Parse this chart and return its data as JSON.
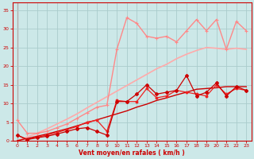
{
  "background_color": "#cce8e8",
  "grid_color": "#aacccc",
  "xlabel": "Vent moyen/en rafales ( km/h )",
  "xlim": [
    -0.5,
    23.5
  ],
  "ylim": [
    0,
    37
  ],
  "xticks": [
    0,
    1,
    2,
    3,
    4,
    5,
    6,
    7,
    8,
    9,
    10,
    11,
    12,
    13,
    14,
    15,
    16,
    17,
    18,
    19,
    20,
    21,
    22,
    23
  ],
  "yticks": [
    0,
    5,
    10,
    15,
    20,
    25,
    30,
    35
  ],
  "line_diagonal": {
    "x": [
      0,
      1,
      2,
      3,
      4,
      5,
      6,
      7,
      8,
      9,
      10,
      11,
      12,
      13,
      14,
      15,
      16,
      17,
      18,
      19,
      20,
      21,
      22,
      23
    ],
    "y": [
      0,
      0.6,
      1.2,
      1.8,
      2.5,
      3.2,
      4.0,
      4.8,
      5.6,
      6.4,
      7.2,
      8.0,
      9.0,
      9.8,
      10.8,
      11.5,
      12.3,
      13.0,
      13.8,
      14.0,
      14.2,
      14.5,
      14.5,
      14.5
    ],
    "color": "#cc0000",
    "lw": 1.0
  },
  "line_pink_high": {
    "x": [
      0,
      1,
      2,
      3,
      4,
      5,
      6,
      7,
      8,
      9,
      10,
      11,
      12,
      13,
      14,
      15,
      16,
      17,
      18,
      19,
      20,
      21,
      22,
      23
    ],
    "y": [
      5.5,
      2.0,
      2.0,
      2.5,
      3.5,
      4.5,
      6.0,
      7.5,
      9.0,
      9.5,
      24.5,
      33.0,
      31.5,
      28.0,
      27.5,
      28.0,
      26.5,
      29.5,
      32.5,
      29.5,
      32.5,
      24.5,
      32.0,
      29.5
    ],
    "color": "#ff8888",
    "lw": 1.0,
    "marker": "+"
  },
  "line_pink_linear": {
    "x": [
      0,
      1,
      2,
      3,
      4,
      5,
      6,
      7,
      8,
      9,
      10,
      11,
      12,
      13,
      14,
      15,
      16,
      17,
      18,
      19,
      20,
      21,
      22,
      23
    ],
    "y": [
      0,
      1.0,
      2.0,
      3.2,
      4.5,
      5.8,
      7.2,
      8.8,
      10.3,
      11.8,
      13.3,
      14.8,
      16.3,
      17.8,
      19.3,
      20.5,
      22.0,
      23.2,
      24.2,
      25.0,
      24.8,
      24.5,
      24.8,
      24.5
    ],
    "color": "#ffaaaa",
    "lw": 1.2
  },
  "line_red_markers1": {
    "x": [
      0,
      1,
      2,
      3,
      4,
      5,
      6,
      7,
      8,
      9,
      10,
      11,
      12,
      13,
      14,
      15,
      16,
      17,
      18,
      19,
      20,
      21,
      22,
      23
    ],
    "y": [
      1.5,
      0.3,
      0.8,
      1.2,
      1.8,
      2.5,
      3.2,
      3.5,
      2.5,
      1.5,
      10.5,
      10.5,
      12.5,
      15.0,
      12.5,
      13.0,
      13.5,
      17.5,
      12.0,
      13.0,
      15.5,
      12.0,
      14.5,
      13.5
    ],
    "color": "#cc0000",
    "lw": 0.9,
    "marker": "D",
    "markersize": 2.0
  },
  "line_red_markers2": {
    "x": [
      0,
      1,
      2,
      3,
      4,
      5,
      6,
      7,
      8,
      9,
      10,
      11,
      12,
      13,
      14,
      15,
      16,
      17,
      18,
      19,
      20,
      21,
      22,
      23
    ],
    "y": [
      1.5,
      0.3,
      1.0,
      1.5,
      2.2,
      3.0,
      3.8,
      5.0,
      5.5,
      2.5,
      10.8,
      10.5,
      10.5,
      14.0,
      11.5,
      12.0,
      13.5,
      13.0,
      12.5,
      12.0,
      15.0,
      12.5,
      14.0,
      13.5
    ],
    "color": "#ee2222",
    "lw": 0.9,
    "marker": "o",
    "markersize": 1.8
  },
  "axis_color": "#cc0000",
  "tick_color": "#cc0000",
  "label_color": "#cc0000",
  "tick_labelsize": 4.5,
  "xlabel_fontsize": 5.5
}
